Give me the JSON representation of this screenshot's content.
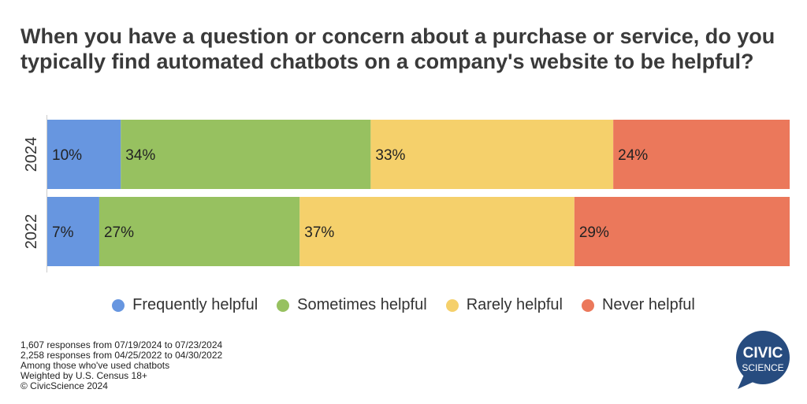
{
  "chart_data": {
    "type": "bar",
    "orientation": "horizontal-stacked-100",
    "title": "When you have a question or concern about a purchase or service, do you typically find automated chatbots on a company's website to be helpful?",
    "categories": [
      "2024",
      "2022"
    ],
    "series": [
      {
        "name": "Frequently helpful",
        "color": "#6796e0",
        "values": [
          10,
          7
        ]
      },
      {
        "name": "Sometimes helpful",
        "color": "#97c160",
        "values": [
          34,
          27
        ]
      },
      {
        "name": "Rarely helpful",
        "color": "#f5d06b",
        "values": [
          33,
          37
        ]
      },
      {
        "name": "Never helpful",
        "color": "#eb785b",
        "values": [
          24,
          29
        ]
      }
    ],
    "legend_position": "bottom",
    "grid": false
  },
  "notes": [
    "1,607 responses from 07/19/2024 to 07/23/2024",
    "2,258 responses from 04/25/2022 to 04/30/2022",
    "Among those who've used chatbots",
    "Weighted by U.S. Census 18+",
    "© CivicScience 2024"
  ],
  "logo": {
    "line1": "CIVIC",
    "line2": "SCIENCE",
    "color": "#274c7f"
  }
}
